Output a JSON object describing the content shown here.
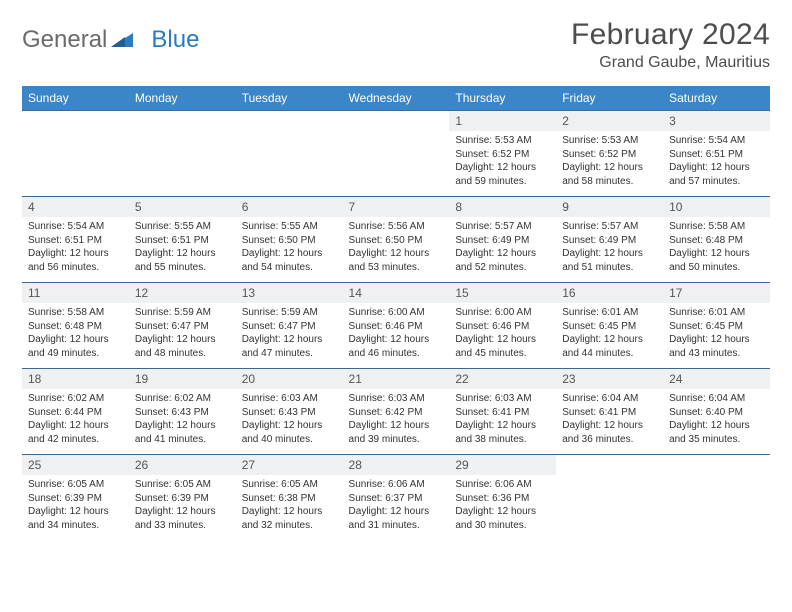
{
  "brand": {
    "part1": "General",
    "part2": "Blue"
  },
  "title": "February 2024",
  "location": "Grand Gaube, Mauritius",
  "colors": {
    "header_bg": "#3a86c8",
    "header_text": "#ffffff",
    "daynum_bg": "#eef0f2",
    "row_border": "#3a6a94",
    "page_bg": "#ffffff",
    "text": "#333333",
    "logo_gray": "#6b6b6b",
    "logo_blue": "#2a7bbf"
  },
  "day_names": [
    "Sunday",
    "Monday",
    "Tuesday",
    "Wednesday",
    "Thursday",
    "Friday",
    "Saturday"
  ],
  "weeks": [
    [
      null,
      null,
      null,
      null,
      {
        "n": "1",
        "sr": "Sunrise: 5:53 AM",
        "ss": "Sunset: 6:52 PM",
        "dl1": "Daylight: 12 hours",
        "dl2": "and 59 minutes."
      },
      {
        "n": "2",
        "sr": "Sunrise: 5:53 AM",
        "ss": "Sunset: 6:52 PM",
        "dl1": "Daylight: 12 hours",
        "dl2": "and 58 minutes."
      },
      {
        "n": "3",
        "sr": "Sunrise: 5:54 AM",
        "ss": "Sunset: 6:51 PM",
        "dl1": "Daylight: 12 hours",
        "dl2": "and 57 minutes."
      }
    ],
    [
      {
        "n": "4",
        "sr": "Sunrise: 5:54 AM",
        "ss": "Sunset: 6:51 PM",
        "dl1": "Daylight: 12 hours",
        "dl2": "and 56 minutes."
      },
      {
        "n": "5",
        "sr": "Sunrise: 5:55 AM",
        "ss": "Sunset: 6:51 PM",
        "dl1": "Daylight: 12 hours",
        "dl2": "and 55 minutes."
      },
      {
        "n": "6",
        "sr": "Sunrise: 5:55 AM",
        "ss": "Sunset: 6:50 PM",
        "dl1": "Daylight: 12 hours",
        "dl2": "and 54 minutes."
      },
      {
        "n": "7",
        "sr": "Sunrise: 5:56 AM",
        "ss": "Sunset: 6:50 PM",
        "dl1": "Daylight: 12 hours",
        "dl2": "and 53 minutes."
      },
      {
        "n": "8",
        "sr": "Sunrise: 5:57 AM",
        "ss": "Sunset: 6:49 PM",
        "dl1": "Daylight: 12 hours",
        "dl2": "and 52 minutes."
      },
      {
        "n": "9",
        "sr": "Sunrise: 5:57 AM",
        "ss": "Sunset: 6:49 PM",
        "dl1": "Daylight: 12 hours",
        "dl2": "and 51 minutes."
      },
      {
        "n": "10",
        "sr": "Sunrise: 5:58 AM",
        "ss": "Sunset: 6:48 PM",
        "dl1": "Daylight: 12 hours",
        "dl2": "and 50 minutes."
      }
    ],
    [
      {
        "n": "11",
        "sr": "Sunrise: 5:58 AM",
        "ss": "Sunset: 6:48 PM",
        "dl1": "Daylight: 12 hours",
        "dl2": "and 49 minutes."
      },
      {
        "n": "12",
        "sr": "Sunrise: 5:59 AM",
        "ss": "Sunset: 6:47 PM",
        "dl1": "Daylight: 12 hours",
        "dl2": "and 48 minutes."
      },
      {
        "n": "13",
        "sr": "Sunrise: 5:59 AM",
        "ss": "Sunset: 6:47 PM",
        "dl1": "Daylight: 12 hours",
        "dl2": "and 47 minutes."
      },
      {
        "n": "14",
        "sr": "Sunrise: 6:00 AM",
        "ss": "Sunset: 6:46 PM",
        "dl1": "Daylight: 12 hours",
        "dl2": "and 46 minutes."
      },
      {
        "n": "15",
        "sr": "Sunrise: 6:00 AM",
        "ss": "Sunset: 6:46 PM",
        "dl1": "Daylight: 12 hours",
        "dl2": "and 45 minutes."
      },
      {
        "n": "16",
        "sr": "Sunrise: 6:01 AM",
        "ss": "Sunset: 6:45 PM",
        "dl1": "Daylight: 12 hours",
        "dl2": "and 44 minutes."
      },
      {
        "n": "17",
        "sr": "Sunrise: 6:01 AM",
        "ss": "Sunset: 6:45 PM",
        "dl1": "Daylight: 12 hours",
        "dl2": "and 43 minutes."
      }
    ],
    [
      {
        "n": "18",
        "sr": "Sunrise: 6:02 AM",
        "ss": "Sunset: 6:44 PM",
        "dl1": "Daylight: 12 hours",
        "dl2": "and 42 minutes."
      },
      {
        "n": "19",
        "sr": "Sunrise: 6:02 AM",
        "ss": "Sunset: 6:43 PM",
        "dl1": "Daylight: 12 hours",
        "dl2": "and 41 minutes."
      },
      {
        "n": "20",
        "sr": "Sunrise: 6:03 AM",
        "ss": "Sunset: 6:43 PM",
        "dl1": "Daylight: 12 hours",
        "dl2": "and 40 minutes."
      },
      {
        "n": "21",
        "sr": "Sunrise: 6:03 AM",
        "ss": "Sunset: 6:42 PM",
        "dl1": "Daylight: 12 hours",
        "dl2": "and 39 minutes."
      },
      {
        "n": "22",
        "sr": "Sunrise: 6:03 AM",
        "ss": "Sunset: 6:41 PM",
        "dl1": "Daylight: 12 hours",
        "dl2": "and 38 minutes."
      },
      {
        "n": "23",
        "sr": "Sunrise: 6:04 AM",
        "ss": "Sunset: 6:41 PM",
        "dl1": "Daylight: 12 hours",
        "dl2": "and 36 minutes."
      },
      {
        "n": "24",
        "sr": "Sunrise: 6:04 AM",
        "ss": "Sunset: 6:40 PM",
        "dl1": "Daylight: 12 hours",
        "dl2": "and 35 minutes."
      }
    ],
    [
      {
        "n": "25",
        "sr": "Sunrise: 6:05 AM",
        "ss": "Sunset: 6:39 PM",
        "dl1": "Daylight: 12 hours",
        "dl2": "and 34 minutes."
      },
      {
        "n": "26",
        "sr": "Sunrise: 6:05 AM",
        "ss": "Sunset: 6:39 PM",
        "dl1": "Daylight: 12 hours",
        "dl2": "and 33 minutes."
      },
      {
        "n": "27",
        "sr": "Sunrise: 6:05 AM",
        "ss": "Sunset: 6:38 PM",
        "dl1": "Daylight: 12 hours",
        "dl2": "and 32 minutes."
      },
      {
        "n": "28",
        "sr": "Sunrise: 6:06 AM",
        "ss": "Sunset: 6:37 PM",
        "dl1": "Daylight: 12 hours",
        "dl2": "and 31 minutes."
      },
      {
        "n": "29",
        "sr": "Sunrise: 6:06 AM",
        "ss": "Sunset: 6:36 PM",
        "dl1": "Daylight: 12 hours",
        "dl2": "and 30 minutes."
      },
      null,
      null
    ]
  ]
}
